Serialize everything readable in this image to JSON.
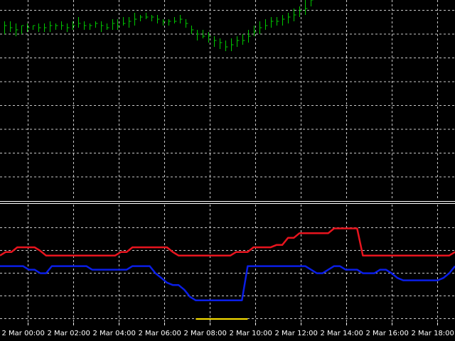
{
  "colors": {
    "background": "#000000",
    "grid": "#c8c8c8",
    "price_bars": "#00c800",
    "upper_line": "#e8141e",
    "lower_line": "#0a1ee6",
    "marker": "#ffe600",
    "separator": "#ffffff",
    "axis_text": "#ffffff"
  },
  "time_axis": {
    "labels": [
      "2 Mar 00:00",
      "2 Mar 02:00",
      "2 Mar 04:00",
      "2 Mar 06:00",
      "2 Mar 08:00",
      "2 Mar 10:00",
      "2 Mar 12:00",
      "2 Mar 14:00",
      "2 Mar 16:00",
      "2 Mar 18:00"
    ]
  },
  "chart_data": {
    "type": "line",
    "main_panel": {
      "series_type": "ohlc-bars",
      "x_range": [
        0,
        100
      ],
      "y_range": [
        0,
        100
      ],
      "bars": [
        [
          84,
          82,
          78
        ],
        [
          84,
          81,
          79
        ],
        [
          83,
          80,
          77
        ],
        [
          82,
          82,
          78
        ],
        [
          83,
          81,
          79
        ],
        [
          82,
          82,
          80
        ],
        [
          83,
          81,
          79
        ],
        [
          83,
          81,
          79
        ],
        [
          84,
          82,
          79
        ],
        [
          83,
          82,
          80
        ],
        [
          84,
          82,
          80
        ],
        [
          83,
          81,
          79
        ],
        [
          84,
          82,
          80
        ],
        [
          86,
          83,
          81
        ],
        [
          84,
          82,
          80
        ],
        [
          83,
          82,
          80
        ],
        [
          84,
          83,
          81
        ],
        [
          84,
          82,
          79
        ],
        [
          83,
          81,
          80
        ],
        [
          85,
          83,
          80
        ],
        [
          85,
          82,
          80
        ],
        [
          86,
          83,
          82
        ],
        [
          86,
          84,
          81
        ],
        [
          88,
          85,
          82
        ],
        [
          87,
          86,
          84
        ],
        [
          88,
          86,
          85
        ],
        [
          87,
          86,
          84
        ],
        [
          87,
          85,
          83
        ],
        [
          85,
          84,
          82
        ],
        [
          85,
          84,
          82
        ],
        [
          86,
          84,
          83
        ],
        [
          87,
          85,
          83
        ],
        [
          85,
          83,
          81
        ],
        [
          82,
          80,
          78
        ],
        [
          80,
          78,
          75
        ],
        [
          80,
          77,
          76
        ],
        [
          79,
          77,
          74
        ],
        [
          77,
          75,
          72
        ],
        [
          76,
          74,
          71
        ],
        [
          75,
          72,
          70
        ],
        [
          76,
          73,
          70
        ],
        [
          77,
          75,
          72
        ],
        [
          78,
          75,
          73
        ],
        [
          80,
          77,
          74
        ],
        [
          82,
          79,
          77
        ],
        [
          84,
          81,
          78
        ],
        [
          85,
          82,
          80
        ],
        [
          86,
          84,
          81
        ],
        [
          86,
          84,
          82
        ],
        [
          87,
          85,
          82
        ],
        [
          88,
          86,
          83
        ],
        [
          90,
          87,
          84
        ],
        [
          91,
          89,
          86
        ],
        [
          94,
          90,
          87
        ],
        [
          96,
          94,
          91
        ],
        [
          99,
          97,
          94
        ],
        [
          100,
          99,
          96
        ],
        [
          100,
          99,
          97
        ],
        [
          100,
          99,
          97
        ],
        [
          100,
          99,
          98
        ],
        [
          100,
          99,
          98
        ],
        [
          100,
          99,
          98
        ],
        [
          100,
          98,
          96
        ],
        [
          100,
          99,
          97
        ],
        [
          100,
          99,
          98
        ],
        [
          100,
          98,
          96
        ],
        [
          100,
          99,
          97
        ],
        [
          100,
          98,
          96
        ],
        [
          100,
          98,
          95
        ],
        [
          100,
          99,
          97
        ],
        [
          100,
          99,
          97
        ],
        [
          100,
          98,
          96
        ],
        [
          100,
          98,
          96
        ],
        [
          100,
          99,
          97
        ],
        [
          100,
          99,
          98
        ],
        [
          100,
          99,
          98
        ],
        [
          100,
          98,
          97
        ],
        [
          100,
          99,
          98
        ],
        [
          100,
          99,
          98
        ],
        [
          100,
          99,
          97
        ]
      ]
    },
    "indicator_panel": {
      "x_range": [
        0,
        100
      ],
      "y_range": [
        0,
        100
      ],
      "series": [
        {
          "color": "#e8141e",
          "x": [
            0,
            1,
            2,
            3,
            4,
            5,
            6,
            7,
            8,
            9,
            10,
            11,
            12,
            13,
            14,
            15,
            16,
            17,
            18,
            19,
            20,
            21,
            22,
            23,
            24,
            25,
            26,
            27,
            28,
            29,
            30,
            31,
            32,
            33,
            34,
            35,
            36,
            37,
            38,
            39,
            40,
            41,
            42,
            43,
            44,
            45,
            46,
            47,
            48,
            49,
            50,
            51,
            52,
            53,
            54,
            55,
            56,
            57,
            58,
            59,
            60,
            61,
            62,
            63,
            64,
            65,
            66,
            67,
            68,
            69,
            70,
            71,
            72,
            73,
            74,
            75,
            76,
            77,
            78,
            79
          ],
          "y": [
            55,
            58,
            58,
            62,
            62,
            62,
            62,
            59,
            55,
            55,
            55,
            55,
            55,
            55,
            55,
            55,
            55,
            55,
            55,
            55,
            55,
            58,
            58,
            62,
            62,
            62,
            62,
            62,
            62,
            62,
            58,
            55,
            55,
            55,
            55,
            55,
            55,
            55,
            55,
            55,
            55,
            58,
            58,
            58,
            62,
            62,
            62,
            62,
            64,
            64,
            70,
            70,
            74,
            74,
            74,
            74,
            74,
            74,
            78,
            78,
            78,
            78,
            78,
            55,
            55,
            55,
            55,
            55,
            55,
            55,
            55,
            55,
            55,
            55,
            55,
            55,
            55,
            55,
            55,
            58
          ]
        },
        {
          "color": "#0a1ee6",
          "x": [
            0,
            1,
            2,
            3,
            4,
            5,
            6,
            7,
            8,
            9,
            10,
            11,
            12,
            13,
            14,
            15,
            16,
            17,
            18,
            19,
            20,
            21,
            22,
            23,
            24,
            25,
            26,
            27,
            28,
            29,
            30,
            31,
            32,
            33,
            34,
            35,
            36,
            37,
            38,
            39,
            40,
            41,
            42,
            43,
            44,
            45,
            46,
            47,
            48,
            49,
            50,
            51,
            52,
            53,
            54,
            55,
            56,
            57,
            58,
            59,
            60,
            61,
            62,
            63,
            64,
            65,
            66,
            67,
            68,
            69,
            70,
            71,
            72,
            73,
            74,
            75,
            76,
            77,
            78,
            79
          ],
          "y": [
            46,
            46,
            46,
            46,
            46,
            43,
            43,
            40,
            40,
            46,
            46,
            46,
            46,
            46,
            46,
            46,
            43,
            43,
            43,
            43,
            43,
            43,
            43,
            46,
            46,
            46,
            46,
            40,
            36,
            32,
            30,
            30,
            26,
            20,
            17,
            17,
            17,
            17,
            17,
            17,
            17,
            17,
            17,
            46,
            46,
            46,
            46,
            46,
            46,
            46,
            46,
            46,
            46,
            46,
            43,
            40,
            40,
            43,
            46,
            46,
            43,
            43,
            43,
            40,
            40,
            40,
            43,
            43,
            40,
            36,
            34,
            34,
            34,
            34,
            34,
            34,
            34,
            36,
            40,
            46
          ]
        }
      ],
      "marker": {
        "color": "#ffe600",
        "x_start": 34,
        "x_end": 43,
        "y": 8
      }
    }
  }
}
